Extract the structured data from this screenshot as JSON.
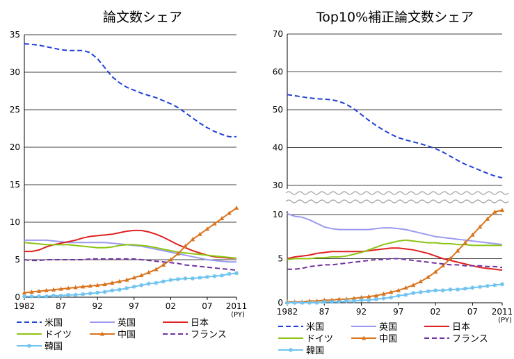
{
  "chart_data": [
    {
      "type": "line",
      "title": "論文数シェア",
      "x": [
        1982,
        1983,
        1984,
        1985,
        1986,
        1987,
        1988,
        1989,
        1990,
        1991,
        1992,
        1993,
        1994,
        1995,
        1996,
        1997,
        1998,
        1999,
        2000,
        2001,
        2002,
        2003,
        2004,
        2005,
        2006,
        2007,
        2008,
        2009,
        2010,
        2011
      ],
      "xticks": [
        "1982",
        "87",
        "92",
        "97",
        "02",
        "07",
        "2011"
      ],
      "xunit": "(PY)",
      "ylim": [
        0,
        35
      ],
      "yticks": [
        "0",
        "5",
        "10",
        "15",
        "20",
        "25",
        "30",
        "35"
      ],
      "grid": true,
      "legend_position": "bottom",
      "series": [
        {
          "name": "米国",
          "color": "#1f3fd6",
          "style": "dashed",
          "values": [
            33.8,
            33.7,
            33.6,
            33.4,
            33.2,
            33.0,
            32.9,
            32.9,
            32.9,
            32.6,
            31.8,
            30.6,
            29.4,
            28.6,
            28.0,
            27.6,
            27.2,
            26.9,
            26.6,
            26.2,
            25.8,
            25.3,
            24.6,
            23.9,
            23.2,
            22.6,
            22.1,
            21.7,
            21.4,
            21.4
          ]
        },
        {
          "name": "英国",
          "color": "#9a9af0",
          "style": "solid",
          "values": [
            7.6,
            7.6,
            7.6,
            7.6,
            7.5,
            7.4,
            7.3,
            7.3,
            7.3,
            7.3,
            7.3,
            7.3,
            7.2,
            7.1,
            7.0,
            6.9,
            6.8,
            6.6,
            6.4,
            6.2,
            6.0,
            5.8,
            5.6,
            5.4,
            5.2,
            5.0,
            4.9,
            4.8,
            4.7,
            4.7
          ]
        },
        {
          "name": "日本",
          "color": "#e02020",
          "style": "solid",
          "values": [
            6.1,
            6.1,
            6.3,
            6.7,
            7.0,
            7.2,
            7.4,
            7.6,
            7.9,
            8.1,
            8.2,
            8.3,
            8.4,
            8.6,
            8.8,
            8.9,
            8.9,
            8.7,
            8.4,
            8.0,
            7.5,
            7.0,
            6.6,
            6.2,
            5.9,
            5.6,
            5.4,
            5.3,
            5.2,
            5.2
          ]
        },
        {
          "name": "ドイツ",
          "color": "#8cc414",
          "style": "solid",
          "values": [
            7.3,
            7.2,
            7.1,
            7.0,
            7.0,
            7.0,
            7.0,
            6.9,
            6.8,
            6.7,
            6.6,
            6.6,
            6.7,
            6.9,
            7.0,
            7.0,
            6.9,
            6.8,
            6.6,
            6.4,
            6.2,
            6.0,
            5.9,
            5.8,
            5.7,
            5.6,
            5.5,
            5.4,
            5.3,
            5.2
          ]
        },
        {
          "name": "中国",
          "color": "#d9731c",
          "style": "solid",
          "marker": "triangle",
          "values": [
            0.6,
            0.7,
            0.8,
            0.9,
            1.0,
            1.1,
            1.2,
            1.3,
            1.4,
            1.5,
            1.6,
            1.7,
            1.9,
            2.1,
            2.3,
            2.6,
            2.9,
            3.3,
            3.7,
            4.3,
            5.0,
            5.8,
            6.8,
            7.7,
            8.4,
            9.1,
            9.8,
            10.5,
            11.2,
            11.9
          ]
        },
        {
          "name": "フランス",
          "color": "#7030a0",
          "style": "dashed",
          "values": [
            5.0,
            4.9,
            4.9,
            5.0,
            5.0,
            5.0,
            5.0,
            5.0,
            5.0,
            5.1,
            5.1,
            5.1,
            5.1,
            5.1,
            5.1,
            5.1,
            5.0,
            4.9,
            4.8,
            4.7,
            4.6,
            4.5,
            4.3,
            4.2,
            4.1,
            4.0,
            3.9,
            3.8,
            3.7,
            3.6
          ]
        },
        {
          "name": "韓国",
          "color": "#6ec3f0",
          "style": "solid",
          "marker": "star",
          "values": [
            0.1,
            0.1,
            0.1,
            0.1,
            0.2,
            0.2,
            0.3,
            0.3,
            0.4,
            0.5,
            0.6,
            0.7,
            0.9,
            1.0,
            1.2,
            1.4,
            1.6,
            1.8,
            1.9,
            2.1,
            2.3,
            2.4,
            2.5,
            2.5,
            2.6,
            2.7,
            2.8,
            2.9,
            3.1,
            3.2
          ]
        }
      ]
    },
    {
      "type": "line",
      "title": "Top10%補正論文数シェア",
      "x": [
        1982,
        1983,
        1984,
        1985,
        1986,
        1987,
        1988,
        1989,
        1990,
        1991,
        1992,
        1993,
        1994,
        1995,
        1996,
        1997,
        1998,
        1999,
        2000,
        2001,
        2002,
        2003,
        2004,
        2005,
        2006,
        2007,
        2008,
        2009,
        2010,
        2011
      ],
      "xticks": [
        "1982",
        "87",
        "92",
        "97",
        "02",
        "07",
        "2011"
      ],
      "xunit": "(PY)",
      "ylim": [
        0,
        70
      ],
      "yticks_lower": [
        "0",
        "5",
        "10"
      ],
      "yticks_upper": [
        "30",
        "40",
        "50",
        "60",
        "70"
      ],
      "axis_break": true,
      "grid": true,
      "legend_position": "bottom",
      "series": [
        {
          "name": "米国",
          "color": "#1f3fd6",
          "style": "dashed",
          "values": [
            54.0,
            53.7,
            53.4,
            53.1,
            52.9,
            52.8,
            52.6,
            52.2,
            51.4,
            50.2,
            48.7,
            47.2,
            45.8,
            44.6,
            43.5,
            42.6,
            42.0,
            41.5,
            41.0,
            40.4,
            39.7,
            38.8,
            37.7,
            36.6,
            35.6,
            34.8,
            34.0,
            33.2,
            32.5,
            32.0
          ]
        },
        {
          "name": "英国",
          "color": "#9a9af0",
          "style": "solid",
          "values": [
            10.1,
            9.8,
            9.7,
            9.4,
            9.0,
            8.6,
            8.4,
            8.3,
            8.3,
            8.3,
            8.3,
            8.3,
            8.4,
            8.5,
            8.5,
            8.4,
            8.3,
            8.1,
            7.9,
            7.7,
            7.5,
            7.4,
            7.3,
            7.2,
            7.1,
            7.0,
            6.9,
            6.8,
            6.7,
            6.6
          ]
        },
        {
          "name": "日本",
          "color": "#e02020",
          "style": "solid",
          "values": [
            5.0,
            5.2,
            5.3,
            5.4,
            5.6,
            5.7,
            5.8,
            5.8,
            5.8,
            5.8,
            5.8,
            5.9,
            6.0,
            6.1,
            6.2,
            6.2,
            6.1,
            6.0,
            5.8,
            5.6,
            5.3,
            5.0,
            4.8,
            4.6,
            4.4,
            4.2,
            4.0,
            3.9,
            3.8,
            3.7
          ]
        },
        {
          "name": "ドイツ",
          "color": "#8cc414",
          "style": "solid",
          "values": [
            4.9,
            5.0,
            5.0,
            5.0,
            5.1,
            5.1,
            5.2,
            5.2,
            5.3,
            5.5,
            5.7,
            6.0,
            6.3,
            6.6,
            6.8,
            7.0,
            7.1,
            7.0,
            6.9,
            6.8,
            6.8,
            6.7,
            6.7,
            6.6,
            6.6,
            6.5,
            6.5,
            6.5,
            6.5,
            6.5
          ]
        },
        {
          "name": "中国",
          "color": "#d9731c",
          "style": "solid",
          "marker": "triangle",
          "values": [
            0.1,
            0.1,
            0.1,
            0.2,
            0.2,
            0.3,
            0.3,
            0.4,
            0.4,
            0.5,
            0.6,
            0.7,
            0.8,
            1.0,
            1.2,
            1.4,
            1.7,
            2.0,
            2.4,
            2.9,
            3.5,
            4.2,
            5.0,
            5.9,
            6.8,
            7.7,
            8.6,
            9.5,
            10.3,
            10.5
          ]
        },
        {
          "name": "フランス",
          "color": "#7030a0",
          "style": "dashed",
          "values": [
            3.8,
            3.8,
            3.9,
            4.1,
            4.2,
            4.3,
            4.3,
            4.4,
            4.5,
            4.6,
            4.7,
            4.8,
            4.9,
            4.9,
            5.0,
            5.0,
            4.9,
            4.8,
            4.7,
            4.6,
            4.5,
            4.4,
            4.3,
            4.3,
            4.2,
            4.2,
            4.2,
            4.1,
            4.1,
            4.0
          ]
        },
        {
          "name": "韓国",
          "color": "#6ec3f0",
          "style": "solid",
          "marker": "star",
          "values": [
            0.0,
            0.0,
            0.0,
            0.0,
            0.0,
            0.1,
            0.1,
            0.1,
            0.2,
            0.2,
            0.3,
            0.3,
            0.4,
            0.5,
            0.6,
            0.8,
            0.9,
            1.1,
            1.2,
            1.3,
            1.4,
            1.4,
            1.5,
            1.5,
            1.6,
            1.7,
            1.8,
            1.9,
            2.0,
            2.1
          ]
        }
      ]
    }
  ],
  "legend": {
    "rows": [
      [
        "米国",
        "英国",
        "日本"
      ],
      [
        "ドイツ",
        "中国",
        "フランス"
      ],
      [
        "韓国"
      ]
    ]
  }
}
